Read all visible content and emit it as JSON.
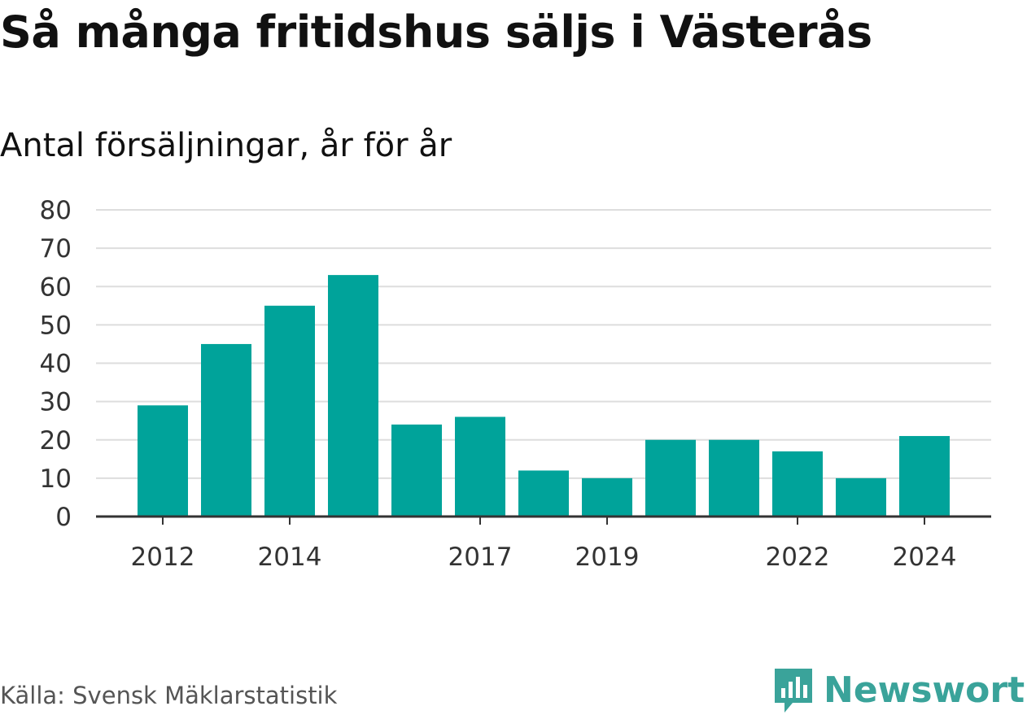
{
  "title": "Så många fritidshus säljs i Västerås",
  "subtitle": "Antal försäljningar, år för år",
  "source": "Källa: Svensk Mäklarstatistik",
  "brand": "Newsworthy",
  "colors": {
    "bar": "#00a39a",
    "grid": "#dddddd",
    "axis": "#333333",
    "brand": "#3aa39a"
  },
  "chart_data": {
    "type": "bar",
    "categories": [
      "2012",
      "2013",
      "2014",
      "2015",
      "2016",
      "2017",
      "2018",
      "2019",
      "2020",
      "2021",
      "2022",
      "2023",
      "2024"
    ],
    "values": [
      29,
      45,
      55,
      63,
      24,
      26,
      12,
      10,
      20,
      20,
      17,
      10,
      21
    ],
    "x_tick_labels": [
      "2012",
      "2014",
      "2017",
      "2019",
      "2022",
      "2024"
    ],
    "y_ticks": [
      0,
      10,
      20,
      30,
      40,
      50,
      60,
      70,
      80
    ],
    "ylim": [
      0,
      80
    ],
    "grid": true,
    "xlabel": "",
    "ylabel": ""
  }
}
